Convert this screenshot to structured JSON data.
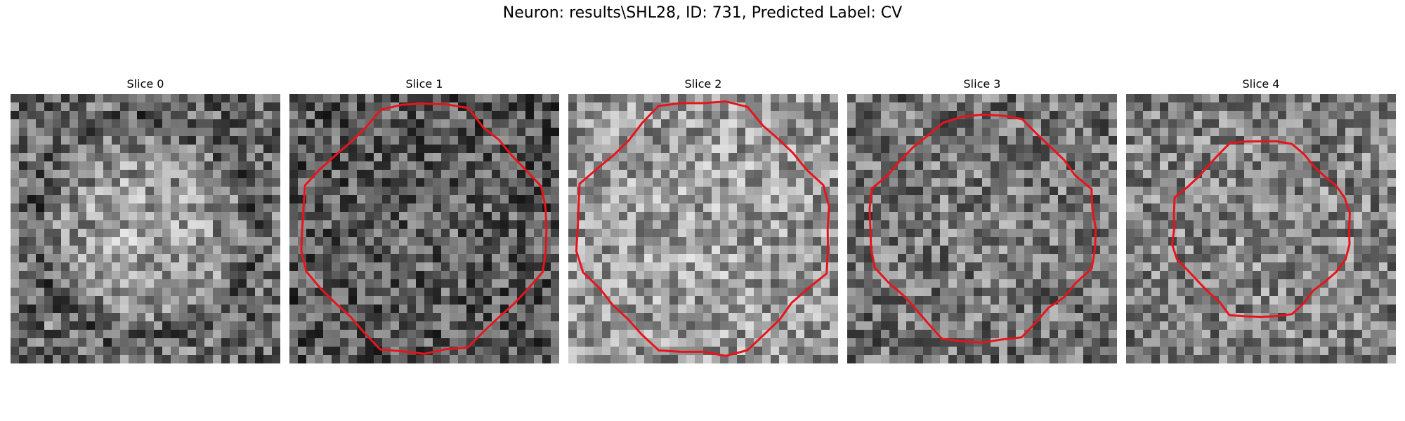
{
  "figure": {
    "title": "Neuron: results\\SHL28, ID: 731, Predicted Label: CV"
  },
  "slices": [
    {
      "title": "Slice 0",
      "has_contour": false,
      "seed": 11,
      "ring_dark": true,
      "center_bright": 0.62
    },
    {
      "title": "Slice 1",
      "has_contour": true,
      "seed": 23,
      "ring_dark": false,
      "center_bright": 0.4,
      "contour_radius": 0.46
    },
    {
      "title": "Slice 2",
      "has_contour": true,
      "seed": 37,
      "ring_dark": false,
      "center_bright": 0.64,
      "contour_radius": 0.47
    },
    {
      "title": "Slice 3",
      "has_contour": true,
      "seed": 41,
      "ring_dark": false,
      "center_bright": 0.5,
      "contour_radius": 0.42
    },
    {
      "title": "Slice 4",
      "has_contour": true,
      "seed": 53,
      "ring_dark": false,
      "center_bright": 0.55,
      "contour_radius": 0.33
    }
  ],
  "colors": {
    "contour": "#e8141b"
  }
}
